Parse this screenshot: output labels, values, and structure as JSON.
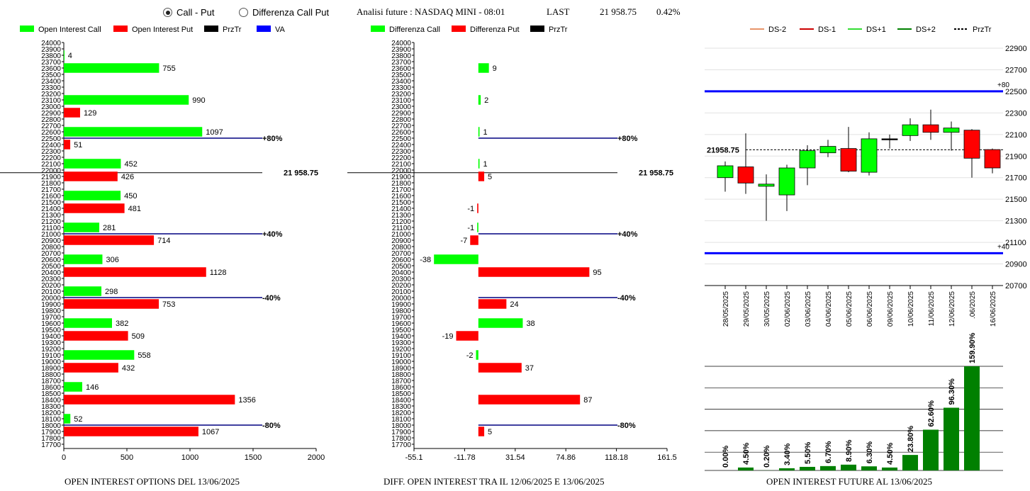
{
  "header": {
    "radio_call_put": "Call - Put",
    "radio_diff": "Differenza Call Put",
    "title": "Analisi future : NASDAQ MINI - 08:01",
    "last_label": "LAST",
    "last_value": "21 958.75",
    "change": "0.42%"
  },
  "colors": {
    "call": "#00ff00",
    "put": "#ff0000",
    "przt": "#000000",
    "va": "#0000ff",
    "dark_green": "#008000"
  },
  "chart_data": [
    {
      "type": "bar",
      "title": "OPEN INTEREST OPTIONS DEL 13/06/2025",
      "legend": [
        "Open Interest Call",
        "Open Interest Put",
        "PrzTr",
        "VA"
      ],
      "y_ticks": [
        "24000",
        "23900",
        "23800",
        "23700",
        "23600",
        "23500",
        "23400",
        "23300",
        "23200",
        "23100",
        "23000",
        "22900",
        "22800",
        "22700",
        "22600",
        "22500",
        "22400",
        "22300",
        "22200",
        "22100",
        "22000",
        "21900",
        "21800",
        "21700",
        "21600",
        "21500",
        "21400",
        "21300",
        "21200",
        "21100",
        "21000",
        "20900",
        "20800",
        "20700",
        "20600",
        "20500",
        "20400",
        "20300",
        "20200",
        "20100",
        "20000",
        "19900",
        "19800",
        "19700",
        "19600",
        "19500",
        "19400",
        "19300",
        "19200",
        "19100",
        "19000",
        "18900",
        "18800",
        "18700",
        "18600",
        "18500",
        "18400",
        "18300",
        "18200",
        "18100",
        "18000",
        "17900",
        "17800",
        "17700"
      ],
      "x_ticks": [
        "0",
        "500",
        "1000",
        "1500",
        "2000"
      ],
      "xlim": [
        0,
        2000
      ],
      "series": [
        {
          "name": "Open Interest Call",
          "strikes": [
            23800,
            23600,
            23100,
            22600,
            22100,
            21600,
            21100,
            20600,
            20100,
            19600,
            19100,
            18600,
            18100
          ],
          "values": [
            4,
            755,
            990,
            1097,
            452,
            450,
            281,
            306,
            298,
            382,
            558,
            146,
            52
          ]
        },
        {
          "name": "Open Interest Put",
          "strikes": [
            22900,
            22400,
            21900,
            21400,
            20900,
            20400,
            19900,
            19400,
            18900,
            18400,
            17900
          ],
          "values": [
            129,
            51,
            426,
            481,
            714,
            1128,
            753,
            509,
            432,
            1356,
            1067
          ]
        }
      ],
      "lines": [
        {
          "label": "+80%",
          "level": 22500,
          "color": "#000080"
        },
        {
          "label": "21 958.75",
          "level": 21958.75,
          "color": "#000000"
        },
        {
          "label": "+40%",
          "level": 21000,
          "color": "#000080"
        },
        {
          "label": "-40%",
          "level": 20000,
          "color": "#000080"
        },
        {
          "label": "-80%",
          "level": 18000,
          "color": "#000080"
        }
      ]
    },
    {
      "type": "bar",
      "title": "DIFF. OPEN INTEREST TRA IL 12/06/2025 E 13/06/2025",
      "legend": [
        "Differenza Call",
        "Differenza Put",
        "PrzTr"
      ],
      "y_ticks": [
        "24000",
        "23900",
        "23800",
        "23700",
        "23600",
        "23500",
        "23400",
        "23300",
        "23200",
        "23100",
        "23000",
        "22900",
        "22800",
        "22700",
        "22600",
        "22500",
        "22400",
        "22300",
        "22200",
        "22100",
        "22000",
        "21900",
        "21800",
        "21700",
        "21600",
        "21500",
        "21400",
        "21300",
        "21200",
        "21100",
        "21000",
        "20900",
        "20800",
        "20700",
        "20600",
        "20500",
        "20400",
        "20300",
        "20200",
        "20100",
        "20000",
        "19900",
        "19800",
        "19700",
        "19600",
        "19500",
        "19400",
        "19300",
        "19200",
        "19100",
        "19000",
        "18900",
        "18800",
        "18700",
        "18600",
        "18500",
        "18400",
        "18300",
        "18200",
        "18100",
        "18000",
        "17900",
        "17800",
        "17700"
      ],
      "x_ticks": [
        "-55.1",
        "-11.78",
        "31.54",
        "74.86",
        "118.18",
        "161.5"
      ],
      "xlim": [
        -55.1,
        161.5
      ],
      "series": [
        {
          "name": "Differenza Call",
          "strikes": [
            23600,
            23100,
            22600,
            22100,
            21100,
            20600,
            19600,
            19100
          ],
          "values": [
            9,
            2,
            1,
            1,
            -1,
            -38,
            38,
            -2
          ]
        },
        {
          "name": "Differenza Put",
          "strikes": [
            21900,
            21400,
            20900,
            20400,
            19900,
            19400,
            18900,
            18400,
            17900
          ],
          "values": [
            5,
            -1,
            -7,
            95,
            24,
            -19,
            37,
            87,
            5
          ]
        }
      ],
      "lines": [
        {
          "label": "+80%",
          "level": 22500,
          "color": "#000080"
        },
        {
          "label": "21 958.75",
          "level": 21958.75,
          "color": "#000000"
        },
        {
          "label": "+40%",
          "level": 21000,
          "color": "#000080"
        },
        {
          "label": "-40%",
          "level": 20000,
          "color": "#000080"
        },
        {
          "label": "-80%",
          "level": 18000,
          "color": "#000080"
        }
      ]
    },
    {
      "type": "candlestick",
      "legend": [
        "DS-2",
        "DS-1",
        "DS+1",
        "DS+2",
        "PrzTr"
      ],
      "legend_colors": [
        "#e8956a",
        "#cc0000",
        "#33dd33",
        "#008000",
        "#000000"
      ],
      "y_ticks": [
        "22900",
        "22700",
        "22500",
        "22300",
        "22100",
        "21900",
        "21700",
        "21500",
        "21300",
        "21100",
        "20900",
        "20700"
      ],
      "ylim": [
        20700,
        22900
      ],
      "last_label": "21958.75",
      "last": 21958.75,
      "band_labels": [
        "+80",
        "+40"
      ],
      "bands": [
        22500,
        21000
      ],
      "candles": [
        {
          "date": "28/05/2025",
          "open": 21700,
          "close": 21810,
          "high": 21850,
          "low": 21570
        },
        {
          "date": "29/05/2025",
          "open": 21800,
          "close": 21650,
          "high": 22110,
          "low": 21550
        },
        {
          "date": "30/05/2025",
          "open": 21620,
          "close": 21640,
          "high": 21730,
          "low": 21300
        },
        {
          "date": "02/06/2025",
          "open": 21540,
          "close": 21790,
          "high": 21820,
          "low": 21390
        },
        {
          "date": "03/06/2025",
          "open": 21790,
          "close": 21950,
          "high": 22000,
          "low": 21630
        },
        {
          "date": "04/06/2025",
          "open": 21930,
          "close": 21990,
          "high": 22050,
          "low": 21890
        },
        {
          "date": "05/06/2025",
          "open": 21970,
          "close": 21760,
          "high": 22170,
          "low": 21750
        },
        {
          "date": "06/06/2025",
          "open": 21750,
          "close": 22060,
          "high": 22120,
          "low": 21720
        },
        {
          "date": "09/06/2025",
          "open": 22060,
          "close": 22060,
          "high": 22100,
          "low": 21970
        },
        {
          "date": "10/06/2025",
          "open": 22090,
          "close": 22190,
          "high": 22250,
          "low": 22040
        },
        {
          "date": "11/06/2025",
          "open": 22190,
          "close": 22120,
          "high": 22330,
          "low": 22050
        },
        {
          "date": "12/06/2025",
          "open": 22120,
          "close": 22160,
          "high": 22220,
          "low": 21950
        },
        {
          "date": ".06/2025",
          "open": 22140,
          "close": 21880,
          "high": 22150,
          "low": 21700
        },
        {
          "date": "16/06/2025",
          "open": 21960,
          "close": 21790,
          "high": 21970,
          "low": 21740
        }
      ]
    },
    {
      "type": "bar",
      "title": "OPEN INTEREST FUTURE AL 13/06/2025",
      "labels": [
        "0.00%",
        "4.50%",
        "0.20%",
        "3.40%",
        "5.50%",
        "6.70%",
        "8.90%",
        "6.30%",
        "4.50%",
        "23.80%",
        "62.60%",
        "96.30%",
        "159.90%"
      ],
      "values": [
        0.0,
        4.5,
        0.2,
        3.4,
        5.5,
        6.7,
        8.9,
        6.3,
        4.5,
        23.8,
        62.6,
        96.3,
        159.9
      ],
      "ylim": [
        0,
        159.9
      ]
    }
  ]
}
